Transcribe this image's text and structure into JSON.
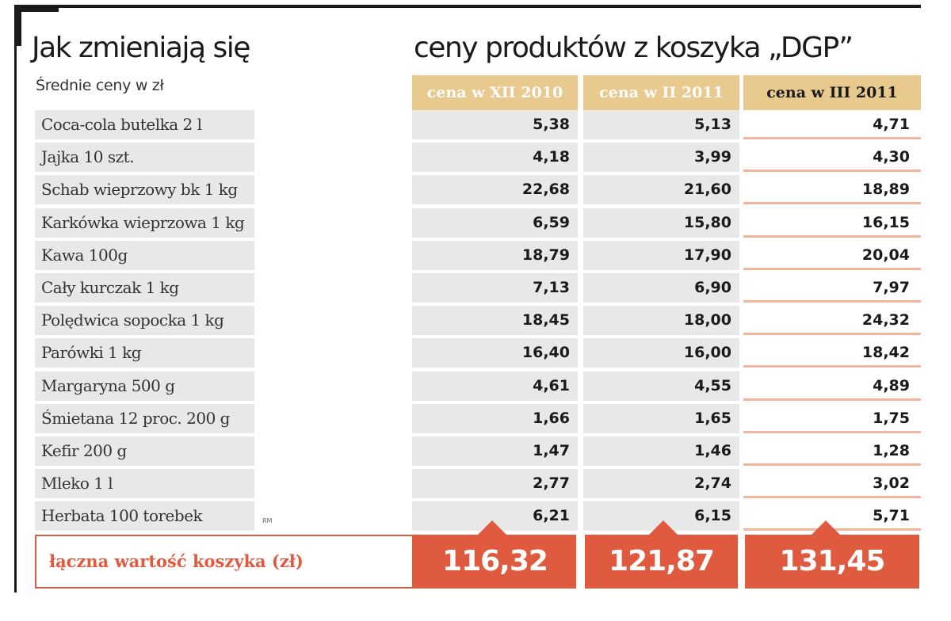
{
  "title_left": "Jak zmieniają się",
  "title_right": "ceny produktów z koszyka „DGP”",
  "subtitle": "Średnie ceny w zł",
  "source_mark": "RM",
  "colors": {
    "header_bg": "#e8c98e",
    "accent": "#e05a3f",
    "row_bg": "#e8e8e8",
    "highlight_line": "#f2b49c"
  },
  "chart_data": {
    "type": "table",
    "columns": [
      "cena w XII 2010",
      "cena w II 2011",
      "cena w III 2011"
    ],
    "rows": [
      {
        "label": "Coca-cola butelka 2 l",
        "values": [
          "5,38",
          "5,13",
          "4,71"
        ]
      },
      {
        "label": "Jajka 10 szt.",
        "values": [
          "4,18",
          "3,99",
          "4,30"
        ]
      },
      {
        "label": "Schab wieprzowy bk 1 kg",
        "values": [
          "22,68",
          "21,60",
          "18,89"
        ]
      },
      {
        "label": "Karkówka wieprzowa 1 kg",
        "values": [
          "6,59",
          "15,80",
          "16,15"
        ]
      },
      {
        "label": "Kawa 100g",
        "values": [
          "18,79",
          "17,90",
          "20,04"
        ]
      },
      {
        "label": "Cały kurczak 1 kg",
        "values": [
          "7,13",
          "6,90",
          "7,97"
        ]
      },
      {
        "label": "Polędwica sopocka 1 kg",
        "values": [
          "18,45",
          "18,00",
          "24,32"
        ]
      },
      {
        "label": "Parówki 1 kg",
        "values": [
          "16,40",
          "16,00",
          "18,42"
        ]
      },
      {
        "label": "Margaryna  500 g",
        "values": [
          "4,61",
          "4,55",
          "4,89"
        ]
      },
      {
        "label": "Śmietana 12 proc. 200 g",
        "values": [
          "1,66",
          "1,65",
          "1,75"
        ]
      },
      {
        "label": "Kefir 200 g",
        "values": [
          "1,47",
          "1,46",
          "1,28"
        ]
      },
      {
        "label": "Mleko 1 l",
        "values": [
          "2,77",
          "2,74",
          "3,02"
        ]
      },
      {
        "label": "Herbata  100 torebek",
        "values": [
          "6,21",
          "6,15",
          "5,71"
        ]
      }
    ],
    "total_label": "łączna wartość koszyka (zł)",
    "totals": [
      "116,32",
      "121,87",
      "131,45"
    ]
  }
}
